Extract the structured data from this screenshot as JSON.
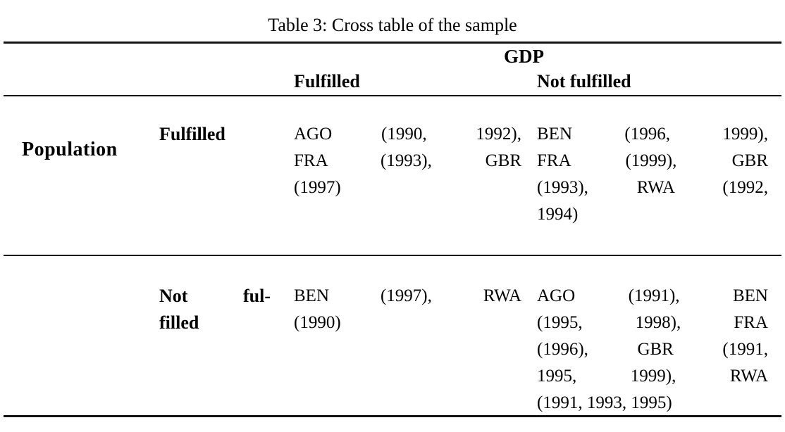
{
  "table": {
    "caption": "Table 3: Cross table of the sample",
    "col_group_header": "GDP",
    "row_group_header": "Population",
    "col_headers": [
      "Fulfilled",
      "Not fulfilled"
    ],
    "rows": [
      {
        "label": "Fulfilled",
        "label_lines": [
          "Fulfilled"
        ],
        "cells": [
          {
            "text": "AGO (1990, 1992), FRA (1993), GBR (1997)",
            "lines": [
              "AGO (1990, 1992),",
              "FRA (1993), GBR",
              "(1997)"
            ]
          },
          {
            "text": "BEN (1996, 1999), FRA (1999), GBR (1993), RWA (1992, 1994)",
            "lines": [
              "BEN (1996, 1999),",
              "FRA (1999), GBR",
              "(1993), RWA (1992,",
              "1994)"
            ]
          }
        ]
      },
      {
        "label": "Not fulfilled",
        "label_lines": [
          "Not ful-",
          "filled"
        ],
        "cells": [
          {
            "text": "BEN (1997), RWA (1990)",
            "lines": [
              "BEN (1997), RWA",
              "(1990)"
            ]
          },
          {
            "text": "AGO (1991), BEN (1995, 1998), FRA (1996), GBR (1991, 1995, 1999), RWA (1991, 1993, 1995)",
            "lines": [
              "AGO (1991), BEN",
              "(1995, 1998), FRA",
              "(1996), GBR (1991,",
              "1995, 1999), RWA",
              "(1991, 1993, 1995)"
            ]
          }
        ]
      }
    ]
  }
}
